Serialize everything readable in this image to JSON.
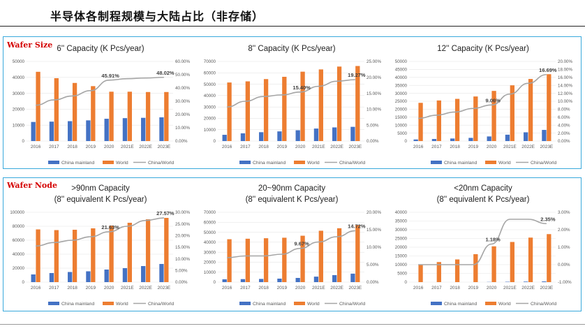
{
  "page": {
    "title": "半导体各制程规模与大陆占比（非存储）",
    "panel_labels": [
      "Wafer Size",
      "Wafer Node"
    ]
  },
  "colors": {
    "china": "#4472c4",
    "world": "#ed7d31",
    "ratio": "#a5a5a5",
    "border": "#39a9dc",
    "label_red": "#d40000"
  },
  "chart_data": [
    {
      "type": "bar",
      "title": "6'' Capacity (K Pcs/year)",
      "categories": [
        "2016",
        "2017",
        "2018",
        "2019",
        "2020",
        "2021E",
        "2022E",
        "2023E"
      ],
      "ylim": [
        0,
        50000
      ],
      "yticks": [
        "0",
        "10000",
        "20000",
        "30000",
        "40000",
        "50000"
      ],
      "y2lim": [
        0,
        0.6
      ],
      "y2ticks": [
        "0.00%",
        "10.00%",
        "20.00%",
        "30.00%",
        "40.00%",
        "50.00%",
        "60.00%"
      ],
      "series": [
        {
          "name": "China mainland",
          "values": [
            12000,
            12200,
            12500,
            13000,
            14000,
            14400,
            14600,
            14900
          ]
        },
        {
          "name": "World",
          "values": [
            43500,
            39500,
            36500,
            34500,
            31000,
            31000,
            30800,
            30800
          ]
        },
        {
          "name": "China/World",
          "axis": "right",
          "values": [
            0.27,
            0.31,
            0.34,
            0.38,
            0.4591,
            0.47,
            0.475,
            0.4802
          ]
        }
      ],
      "annotations": [
        {
          "text": "45.91%",
          "index": 4
        },
        {
          "text": "48.02%",
          "index": 7
        }
      ]
    },
    {
      "type": "bar",
      "title": "8'' Capacity (K Pcs/year)",
      "categories": [
        "2016",
        "2017",
        "2018",
        "2019",
        "2020",
        "2021E",
        "2022E",
        "2023E"
      ],
      "ylim": [
        0,
        70000
      ],
      "yticks": [
        "0",
        "10000",
        "20000",
        "30000",
        "40000",
        "50000",
        "60000",
        "70000"
      ],
      "y2lim": [
        0,
        0.25
      ],
      "y2ticks": [
        "0.00%",
        "5.00%",
        "10.00%",
        "15.00%",
        "20.00%",
        "25.00%"
      ],
      "series": [
        {
          "name": "China mainland",
          "values": [
            5500,
            6800,
            7800,
            8500,
            9500,
            11000,
            12000,
            12500
          ]
        },
        {
          "name": "World",
          "values": [
            51500,
            52500,
            54500,
            56500,
            61000,
            63000,
            65500,
            66000
          ]
        },
        {
          "name": "China/World",
          "axis": "right",
          "values": [
            0.107,
            0.125,
            0.14,
            0.145,
            0.154,
            0.172,
            0.188,
            0.1927
          ]
        }
      ],
      "annotations": [
        {
          "text": "15.40%",
          "index": 4
        },
        {
          "text": "19.27%",
          "index": 7
        }
      ]
    },
    {
      "type": "bar",
      "title": "12''  Capacity (K Pcs/year)",
      "categories": [
        "2016",
        "2017",
        "2018",
        "2019",
        "2020",
        "2021E",
        "2022E",
        "2023E"
      ],
      "ylim": [
        0,
        50000
      ],
      "yticks": [
        "0",
        "5000",
        "10000",
        "15000",
        "20000",
        "25000",
        "30000",
        "35000",
        "40000",
        "45000",
        "50000"
      ],
      "y2lim": [
        0,
        0.2
      ],
      "y2ticks": [
        "0.00%",
        "2.00%",
        "4.00%",
        "6.00%",
        "8.00%",
        "10.00%",
        "12.00%",
        "14.00%",
        "16.00%",
        "18.00%",
        "20.00%"
      ],
      "series": [
        {
          "name": "China mainland",
          "values": [
            1000,
            1300,
            1600,
            2000,
            2900,
            4000,
            5500,
            7000
          ]
        },
        {
          "name": "World",
          "values": [
            24000,
            25500,
            26500,
            28000,
            31500,
            35000,
            39000,
            42000
          ]
        },
        {
          "name": "China/World",
          "axis": "right",
          "values": [
            0.057,
            0.065,
            0.073,
            0.082,
            0.0906,
            0.118,
            0.145,
            0.1669
          ]
        }
      ],
      "annotations": [
        {
          "text": "9.06%",
          "index": 4
        },
        {
          "text": "16.69%",
          "index": 7
        }
      ]
    },
    {
      "type": "bar",
      "title": [
        ">90nm Capacity",
        "(8'' equivalent K Pcs/year)"
      ],
      "categories": [
        "2016",
        "2017",
        "2018",
        "2019",
        "2020",
        "2021E",
        "2022E",
        "2023E"
      ],
      "ylim": [
        0,
        100000
      ],
      "yticks": [
        "0",
        "20000",
        "40000",
        "60000",
        "80000",
        "100000"
      ],
      "y2lim": [
        0,
        0.3
      ],
      "y2ticks": [
        "0.00%",
        "5.00%",
        "10.00%",
        "15.00%",
        "20.00%",
        "25.00%",
        "30.00%"
      ],
      "series": [
        {
          "name": "China mainland",
          "values": [
            11000,
            13000,
            14500,
            15500,
            18000,
            20000,
            23000,
            26000
          ]
        },
        {
          "name": "World",
          "values": [
            75500,
            74500,
            75000,
            77000,
            81000,
            85000,
            90000,
            92000
          ]
        },
        {
          "name": "China/World",
          "axis": "right",
          "values": [
            0.155,
            0.17,
            0.18,
            0.195,
            0.2163,
            0.24,
            0.265,
            0.2757
          ]
        }
      ],
      "annotations": [
        {
          "text": "21.63%",
          "index": 4
        },
        {
          "text": "27.57%",
          "index": 7
        }
      ]
    },
    {
      "type": "bar",
      "title": [
        "20~90nm Capacity",
        "(8'' equivalent K Pcs/year)"
      ],
      "categories": [
        "2016",
        "2017",
        "2018",
        "2019",
        "2020",
        "2021E",
        "2022E",
        "2023E"
      ],
      "ylim": [
        0,
        70000
      ],
      "yticks": [
        "0",
        "10000",
        "20000",
        "30000",
        "40000",
        "50000",
        "60000",
        "70000"
      ],
      "y2lim": [
        0,
        0.2
      ],
      "y2ticks": [
        "0.00%",
        "5.00%",
        "10.00%",
        "15.00%",
        "20.00%"
      ],
      "series": [
        {
          "name": "China mainland",
          "values": [
            2800,
            3000,
            3200,
            3500,
            4200,
            5500,
            7000,
            8500
          ]
        },
        {
          "name": "World",
          "values": [
            43000,
            43500,
            44000,
            44500,
            46500,
            51500,
            54000,
            57000
          ]
        },
        {
          "name": "China/World",
          "axis": "right",
          "values": [
            0.07,
            0.075,
            0.075,
            0.08,
            0.0967,
            0.115,
            0.13,
            0.1472
          ]
        }
      ],
      "annotations": [
        {
          "text": "9.67%",
          "index": 4
        },
        {
          "text": "14.72%",
          "index": 7
        }
      ]
    },
    {
      "type": "bar",
      "title": [
        "<20nm Capacity",
        "(8'' equivalent K Pcs/year)"
      ],
      "categories": [
        "2016",
        "2017",
        "2018",
        "2019",
        "2020",
        "2021E",
        "2022E",
        "2023E"
      ],
      "ylim": [
        0,
        40000
      ],
      "yticks": [
        "0",
        "5000",
        "10000",
        "15000",
        "20000",
        "25000",
        "30000",
        "35000",
        "40000"
      ],
      "y2lim": [
        -0.01,
        0.03
      ],
      "y2ticks": [
        "-1.00%",
        "0.00%",
        "1.00%",
        "2.00%",
        "3.00%"
      ],
      "series": [
        {
          "name": "China mainland",
          "values": [
            0,
            0,
            0,
            0,
            100,
            200,
            300,
            400
          ]
        },
        {
          "name": "World",
          "values": [
            10000,
            11500,
            13000,
            16000,
            20500,
            23000,
            25500,
            27500
          ]
        },
        {
          "name": "China/World",
          "axis": "right",
          "values": [
            0,
            0,
            0,
            0,
            0.0118,
            0.026,
            0.026,
            0.0235
          ]
        }
      ],
      "annotations": [
        {
          "text": "1.18%",
          "index": 4
        },
        {
          "text": "2.35%",
          "index": 7
        }
      ]
    }
  ]
}
